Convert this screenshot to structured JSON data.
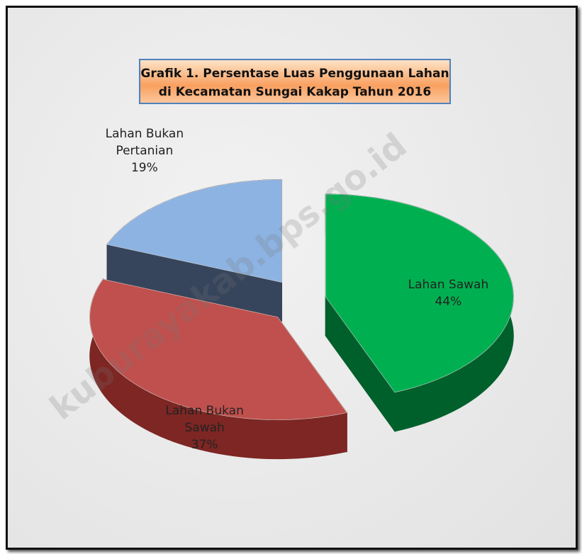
{
  "chart_data": {
    "type": "pie",
    "title": "Grafik 1.  Persentase Luas Penggunaan Lahan di Kecamatan Sungai Kakap Tahun 2016",
    "categories": [
      "Lahan Sawah",
      "Lahan Bukan Sawah",
      "Lahan Bukan Pertanian"
    ],
    "values": [
      44,
      37,
      19
    ],
    "value_labels": [
      "44%",
      "37%",
      "19%"
    ],
    "colors": [
      "#00b050",
      "#c0504d",
      "#8db3e2"
    ],
    "side_colors": [
      "#00602c",
      "#7d2623",
      "#36455c"
    ],
    "watermark": "kuburayakab.bps.go.id"
  }
}
